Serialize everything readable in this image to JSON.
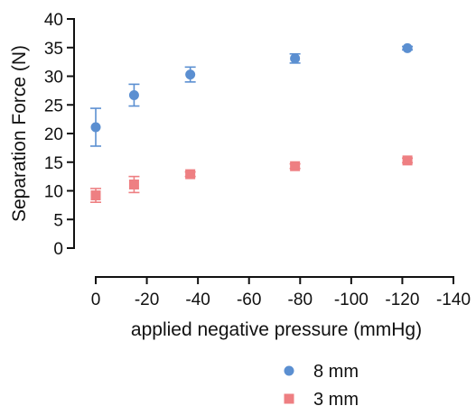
{
  "chart_data": {
    "type": "scatter",
    "xlabel": "applied negative pressure (mmHg)",
    "ylabel": "Separation Force (N)",
    "xlim": [
      0,
      -140
    ],
    "ylim": [
      0,
      40
    ],
    "x_ticks": [
      0,
      -20,
      -40,
      -60,
      -80,
      -100,
      -120,
      -140
    ],
    "x_tick_labels": [
      "0",
      "-20",
      "-40",
      "-60",
      "-80",
      "-100",
      "-120",
      "-140"
    ],
    "y_ticks": [
      0,
      5,
      10,
      15,
      20,
      25,
      30,
      35,
      40
    ],
    "y_tick_labels": [
      "0",
      "5",
      "10",
      "15",
      "20",
      "25",
      "30",
      "35",
      "40"
    ],
    "grid": false,
    "legend_position": "bottom-right",
    "series": [
      {
        "name": "8 mm",
        "marker": "circle",
        "color": "#5b8fd1",
        "x": [
          0,
          -15,
          -37,
          -78,
          -122
        ],
        "y": [
          21.1,
          26.7,
          30.3,
          33.1,
          34.9
        ],
        "err": [
          3.3,
          1.9,
          1.3,
          0.8,
          0.3
        ]
      },
      {
        "name": "3 mm",
        "marker": "square",
        "color": "#ee7f82",
        "x": [
          0,
          -15,
          -37,
          -78,
          -122
        ],
        "y": [
          9.2,
          11.1,
          12.9,
          14.3,
          15.3
        ],
        "err": [
          1.2,
          1.4,
          0.4,
          0.4,
          0.4
        ]
      }
    ]
  }
}
